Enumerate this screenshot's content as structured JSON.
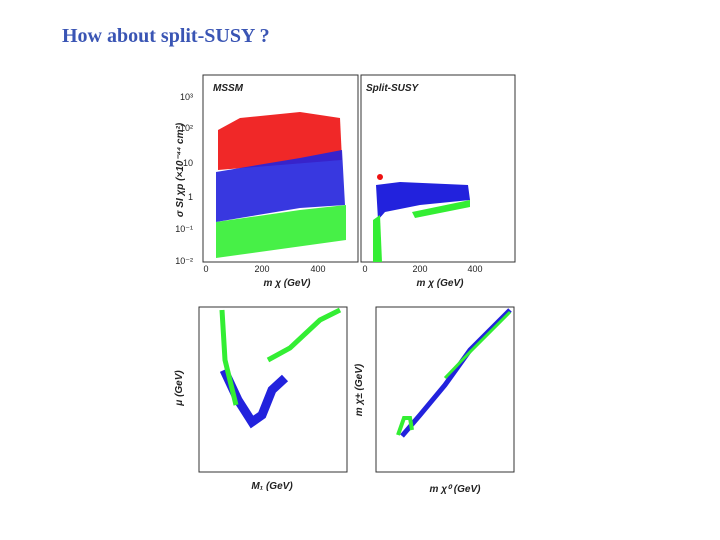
{
  "title": "How about split-SUSY ?",
  "panels": [
    {
      "label": "MSSM",
      "x_label": "m χ (GeV)",
      "y_label": "σ SI χp (×10⁻⁴⁴ cm²)",
      "x_ticks": [
        "0",
        "200",
        "400"
      ],
      "y_ticks": [
        "10³",
        "10²",
        "10",
        "1",
        "10⁻¹",
        "10⁻²"
      ]
    },
    {
      "label": "Split-SUSY",
      "x_label": "m χ (GeV)",
      "x_ticks": [
        "0",
        "200",
        "400"
      ]
    },
    {
      "x_label": "M₁ (GeV)",
      "y_label": "μ (GeV)"
    },
    {
      "x_label": "m χ⁰ (GeV)",
      "y_label": "m χ± (GeV)"
    }
  ]
}
